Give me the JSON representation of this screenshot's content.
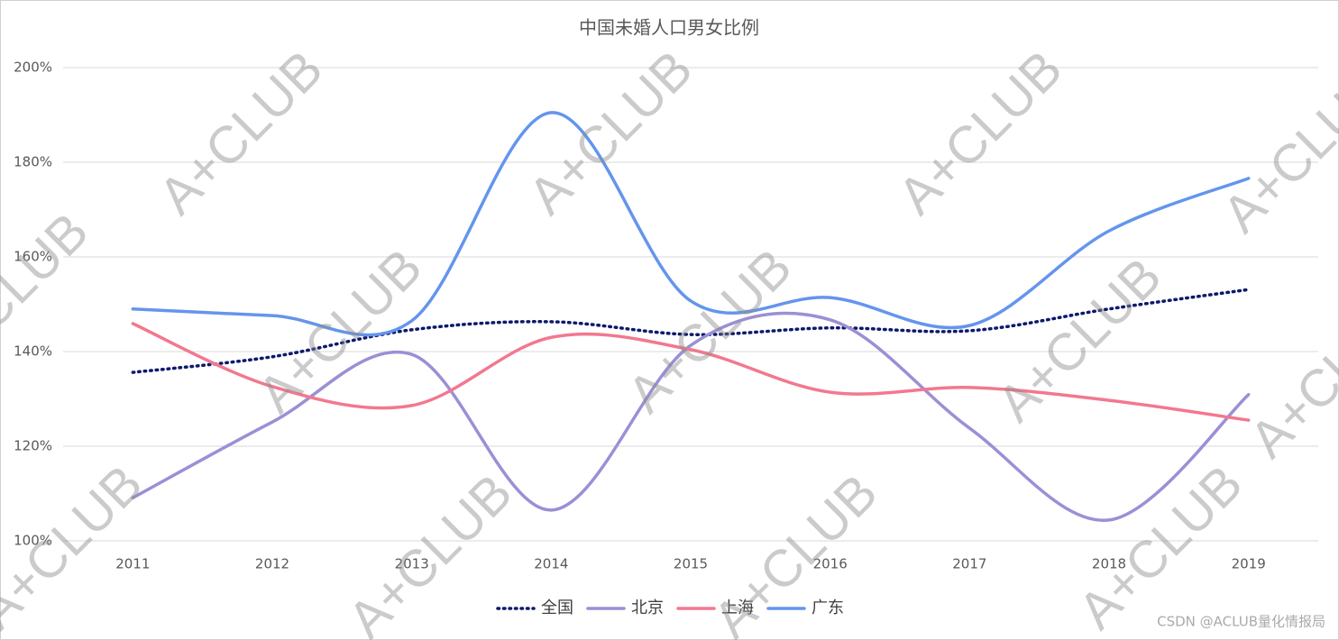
{
  "chart_data": {
    "type": "line",
    "title": "中国未婚人口男女比例",
    "categories": [
      "2011",
      "2012",
      "2013",
      "2014",
      "2015",
      "2016",
      "2017",
      "2018",
      "2019"
    ],
    "series": [
      {
        "name": "全国",
        "color": "#0d1a6b",
        "style": "dotted",
        "values": [
          135.6,
          138.9,
          144.6,
          146.3,
          143.6,
          145.0,
          144.4,
          149.0,
          153.1
        ]
      },
      {
        "name": "北京",
        "color": "#9b8fd6",
        "style": "solid",
        "values": [
          109.1,
          125.1,
          139.4,
          106.5,
          141.3,
          146.7,
          123.8,
          104.4,
          130.9
        ]
      },
      {
        "name": "上海",
        "color": "#f2788f",
        "style": "solid",
        "values": [
          145.9,
          132.6,
          128.6,
          143.0,
          140.4,
          131.4,
          132.4,
          129.7,
          125.5
        ]
      },
      {
        "name": "广东",
        "color": "#6495ed",
        "style": "solid",
        "values": [
          149.0,
          147.6,
          146.5,
          190.5,
          150.7,
          151.4,
          145.5,
          165.5,
          176.6
        ]
      }
    ],
    "ylim": [
      100,
      200
    ],
    "yticks": [
      {
        "value": 100,
        "label": "100%"
      },
      {
        "value": 120,
        "label": "120%"
      },
      {
        "value": 140,
        "label": "140%"
      },
      {
        "value": 160,
        "label": "160%"
      },
      {
        "value": 180,
        "label": "180%"
      },
      {
        "value": 200,
        "label": "200%"
      }
    ],
    "grid": true,
    "smooth": true,
    "legend": "bottom",
    "watermark": "A+CLUB",
    "credit": "CSDN @ACLUB量化情报局"
  }
}
